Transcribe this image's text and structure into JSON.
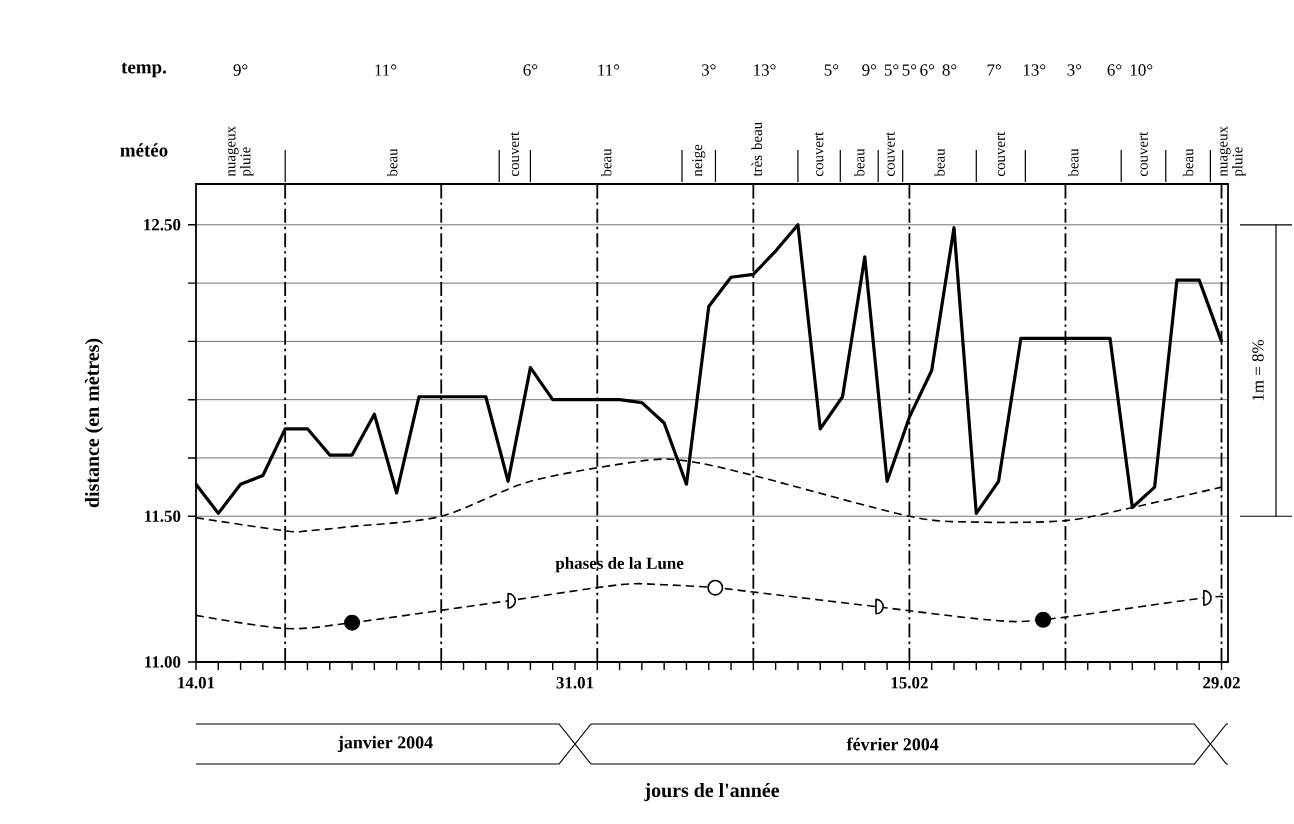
{
  "chart_data": {
    "type": "line",
    "xlabel": "jours de l'année",
    "ylabel": "distance (en mètres)",
    "xlim": [
      "2004-01-14",
      "2004-02-29T07:00"
    ],
    "ylim": [
      11.0,
      12.64
    ],
    "xticks": [
      {
        "value": "2004-01-14",
        "label": "14.01"
      },
      {
        "value": "2004-01-15",
        "label": null
      },
      {
        "value": "2004-01-16",
        "label": null
      },
      {
        "value": "2004-01-17",
        "label": null
      },
      {
        "value": "2004-01-18",
        "label": null
      },
      {
        "value": "2004-01-19",
        "label": null
      },
      {
        "value": "2004-01-20",
        "label": null
      },
      {
        "value": "2004-01-21",
        "label": null
      },
      {
        "value": "2004-01-22",
        "label": null
      },
      {
        "value": "2004-01-23",
        "label": null
      },
      {
        "value": "2004-01-24",
        "label": null
      },
      {
        "value": "2004-01-25",
        "label": null
      },
      {
        "value": "2004-01-26",
        "label": null
      },
      {
        "value": "2004-01-27",
        "label": null
      },
      {
        "value": "2004-01-28",
        "label": null
      },
      {
        "value": "2004-01-29",
        "label": null
      },
      {
        "value": "2004-01-30",
        "label": null
      },
      {
        "value": "2004-01-31",
        "label": "31.01"
      },
      {
        "value": "2004-02-01",
        "label": null
      },
      {
        "value": "2004-02-02",
        "label": null
      },
      {
        "value": "2004-02-03",
        "label": null
      },
      {
        "value": "2004-02-04",
        "label": null
      },
      {
        "value": "2004-02-05",
        "label": null
      },
      {
        "value": "2004-02-06",
        "label": null
      },
      {
        "value": "2004-02-07",
        "label": null
      },
      {
        "value": "2004-02-08",
        "label": null
      },
      {
        "value": "2004-02-09",
        "label": null
      },
      {
        "value": "2004-02-10",
        "label": null
      },
      {
        "value": "2004-02-11",
        "label": null
      },
      {
        "value": "2004-02-12",
        "label": null
      },
      {
        "value": "2004-02-13",
        "label": null
      },
      {
        "value": "2004-02-14",
        "label": null
      },
      {
        "value": "2004-02-15",
        "label": "15.02"
      },
      {
        "value": "2004-02-16",
        "label": null
      },
      {
        "value": "2004-02-17",
        "label": null
      },
      {
        "value": "2004-02-18",
        "label": null
      },
      {
        "value": "2004-02-19",
        "label": null
      },
      {
        "value": "2004-02-20",
        "label": null
      },
      {
        "value": "2004-02-21",
        "label": null
      },
      {
        "value": "2004-02-22",
        "label": null
      },
      {
        "value": "2004-02-23",
        "label": null
      },
      {
        "value": "2004-02-24",
        "label": null
      },
      {
        "value": "2004-02-25",
        "label": null
      },
      {
        "value": "2004-02-26",
        "label": null
      },
      {
        "value": "2004-02-27",
        "label": null
      },
      {
        "value": "2004-02-28",
        "label": null
      },
      {
        "value": "2004-02-29",
        "label": "29.02"
      }
    ],
    "yticks": [
      {
        "value": 11.0,
        "label": "11.00"
      },
      {
        "value": 11.5,
        "label": "11.50"
      },
      {
        "value": 11.7,
        "label": null
      },
      {
        "value": 11.9,
        "label": null
      },
      {
        "value": 12.1,
        "label": null
      },
      {
        "value": 12.3,
        "label": null
      },
      {
        "value": 12.5,
        "label": "12.50"
      }
    ],
    "grid": "y",
    "series": [
      {
        "color": "#000000",
        "line_style": "solid",
        "x": [
          "2004-01-14",
          "2004-01-15",
          "2004-01-16",
          "2004-01-17",
          "2004-01-18",
          "2004-01-19",
          "2004-01-20",
          "2004-01-21",
          "2004-01-22",
          "2004-01-23",
          "2004-01-24",
          "2004-01-25",
          "2004-01-26",
          "2004-01-27",
          "2004-01-28",
          "2004-01-29",
          "2004-01-30",
          "2004-01-31",
          "2004-02-01",
          "2004-02-02",
          "2004-02-03",
          "2004-02-04",
          "2004-02-05",
          "2004-02-06",
          "2004-02-07",
          "2004-02-08",
          "2004-02-09",
          "2004-02-10",
          "2004-02-11",
          "2004-02-12",
          "2004-02-13",
          "2004-02-14",
          "2004-02-15",
          "2004-02-16",
          "2004-02-17",
          "2004-02-18",
          "2004-02-19",
          "2004-02-20",
          "2004-02-21",
          "2004-02-22",
          "2004-02-23",
          "2004-02-24",
          "2004-02-25",
          "2004-02-26",
          "2004-02-27",
          "2004-02-28",
          "2004-02-29"
        ],
        "values": [
          11.61,
          11.51,
          11.61,
          11.64,
          11.8,
          11.8,
          11.71,
          11.71,
          11.85,
          11.58,
          11.91,
          11.91,
          11.91,
          11.91,
          11.62,
          12.01,
          11.9,
          11.9,
          11.9,
          11.9,
          11.89,
          11.82,
          11.61,
          12.22,
          12.32,
          12.33,
          12.41,
          12.5,
          11.8,
          11.91,
          12.39,
          11.62,
          11.84,
          12.0,
          12.49,
          11.51,
          11.62,
          12.11,
          12.11,
          12.11,
          12.11,
          12.11,
          11.53,
          11.6,
          12.31,
          12.31,
          12.1
        ]
      },
      {
        "color": "#000000",
        "line_style": "dashed",
        "x": [
          "2004-01-14",
          "2004-01-18",
          "2004-01-19",
          "2004-01-21",
          "2004-01-25",
          "2004-01-29",
          "2004-02-03",
          "2004-02-05",
          "2004-02-08",
          "2004-02-15",
          "2004-02-18",
          "2004-02-22",
          "2004-02-25",
          "2004-02-29"
        ],
        "values": [
          11.495,
          11.45,
          11.45,
          11.465,
          11.5,
          11.62,
          11.69,
          11.69,
          11.64,
          11.5,
          11.48,
          11.485,
          11.53,
          11.6
        ]
      },
      {
        "name": "phases de la Lune",
        "color": "#000000",
        "line_style": "dashed",
        "x": [
          "2004-01-14",
          "2004-01-18",
          "2004-01-21",
          "2004-01-28",
          "2004-02-02",
          "2004-02-04",
          "2004-02-06T07:00",
          "2004-02-08",
          "2004-02-13T12:00",
          "2004-02-18T12:00",
          "2004-02-21",
          "2004-02-28T05:00",
          "2004-02-29"
        ],
        "values": [
          11.16,
          11.115,
          11.135,
          11.21,
          11.265,
          11.265,
          11.255,
          11.24,
          11.19,
          11.145,
          11.145,
          11.22,
          11.22
        ]
      },
      {
        "type": "scatter",
        "color": "#000000",
        "marker": "circle",
        "x": [
          "2004-01-21",
          "2004-02-21"
        ],
        "values": [
          11.135,
          11.145
        ]
      },
      {
        "type": "scatter",
        "color": "#ffffff",
        "marker": "circle",
        "x": [
          "2004-02-06T07:00"
        ],
        "values": [
          11.255
        ]
      },
      {
        "type": "scatter",
        "color": "#ffffff",
        "marker": "halfcircle-right",
        "x": [
          "2004-01-28",
          "2004-02-28T05:00"
        ],
        "values": [
          11.21,
          11.22
        ]
      },
      {
        "type": "scatter",
        "color": "#ffffff",
        "marker": "halfcircle-left",
        "x": [
          "2004-02-13T12:00"
        ],
        "values": [
          11.19
        ]
      }
    ],
    "ref_lines": [
      {
        "axis": "x",
        "value": "2004-01-18",
        "line_style": "dashdot"
      },
      {
        "axis": "x",
        "value": "2004-01-25",
        "line_style": "dashdot"
      },
      {
        "axis": "x",
        "value": "2004-02-01",
        "line_style": "dashdot"
      },
      {
        "axis": "x",
        "value": "2004-02-08",
        "line_style": "dashdot"
      },
      {
        "axis": "x",
        "value": "2004-02-15",
        "line_style": "dashdot"
      },
      {
        "axis": "x",
        "value": "2004-02-22",
        "line_style": "dashdot"
      },
      {
        "axis": "x",
        "value": "2004-02-29",
        "line_style": "dashdot"
      }
    ],
    "annotations": [
      "temp.",
      "météo",
      "9°",
      "11°",
      "6°",
      "11°",
      "3°",
      "13°",
      "5°",
      "9°",
      "5°",
      "5°",
      "6°",
      "8°",
      "7°",
      "13°",
      "3°",
      "6°",
      "10°",
      "nuageux pluie",
      "beau",
      "couvert",
      "beau",
      "neige",
      "très beau",
      "couvert",
      "beau",
      "couvert",
      "beau",
      "couvert",
      "beau",
      "couvert",
      "beau",
      "nuageux pluie",
      "janvier 2004",
      "février 2004",
      "1m = 8%"
    ]
  }
}
